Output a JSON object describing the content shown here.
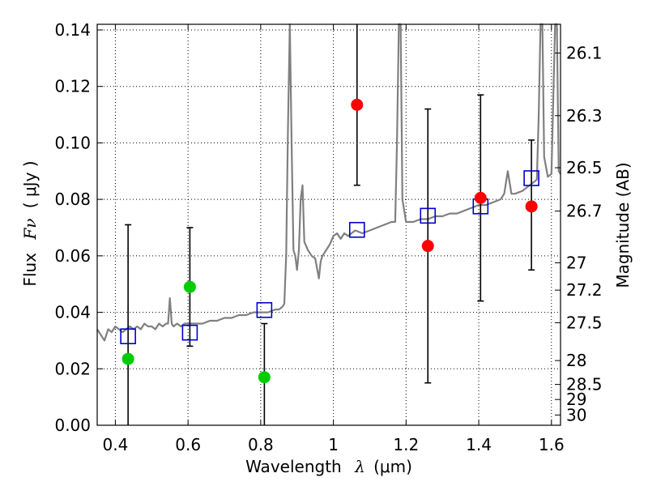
{
  "chart_data": {
    "type": "scatter",
    "title": "",
    "xlabel": {
      "text": "Wavelength",
      "symbol": "λ",
      "unit": "(μm)"
    },
    "ylabel": {
      "text": "Flux",
      "symbol": "Fν",
      "unit": "( μJy )"
    },
    "y2label": "Magnitude (AB)",
    "xlim": [
      0.35,
      1.625
    ],
    "ylim": [
      0.0,
      0.142
    ],
    "grid": true,
    "x_ticks": [
      0.4,
      0.6,
      0.8,
      1.0,
      1.2,
      1.4,
      1.6
    ],
    "x_tick_labels": [
      "0.4",
      "0.6",
      "0.8",
      "1",
      "1.2",
      "1.4",
      "1.6"
    ],
    "y_ticks": [
      0.0,
      0.02,
      0.04,
      0.06,
      0.08,
      0.1,
      0.12,
      0.14
    ],
    "y_tick_labels": [
      "0.00",
      "0.02",
      "0.04",
      "0.06",
      "0.08",
      "0.10",
      "0.12",
      "0.14"
    ],
    "y2_ticks": [
      {
        "mag": 26.1,
        "label": "26.1"
      },
      {
        "mag": 26.3,
        "label": "26.3"
      },
      {
        "mag": 26.5,
        "label": "26.5"
      },
      {
        "mag": 26.7,
        "label": "26.7"
      },
      {
        "mag": 27.0,
        "label": "27"
      },
      {
        "mag": 27.2,
        "label": "27.2"
      },
      {
        "mag": 27.5,
        "label": "27.5"
      },
      {
        "mag": 28.0,
        "label": "28"
      },
      {
        "mag": 28.5,
        "label": "28.5"
      },
      {
        "mag": 29.0,
        "label": "29"
      },
      {
        "mag": 30.0,
        "label": "30"
      }
    ],
    "series": [
      {
        "kind": "line",
        "color": "#808080",
        "points": [
          [
            0.35,
            0.034
          ],
          [
            0.36,
            0.032
          ],
          [
            0.37,
            0.03
          ],
          [
            0.38,
            0.034
          ],
          [
            0.39,
            0.033
          ],
          [
            0.4,
            0.035
          ],
          [
            0.41,
            0.034
          ],
          [
            0.42,
            0.033
          ],
          [
            0.43,
            0.034
          ],
          [
            0.44,
            0.035
          ],
          [
            0.45,
            0.034
          ],
          [
            0.46,
            0.035
          ],
          [
            0.47,
            0.034
          ],
          [
            0.48,
            0.036
          ],
          [
            0.49,
            0.035
          ],
          [
            0.5,
            0.035
          ],
          [
            0.51,
            0.034
          ],
          [
            0.52,
            0.036
          ],
          [
            0.53,
            0.035
          ],
          [
            0.54,
            0.036
          ],
          [
            0.545,
            0.036
          ],
          [
            0.55,
            0.045
          ],
          [
            0.555,
            0.036
          ],
          [
            0.56,
            0.035
          ],
          [
            0.57,
            0.036
          ],
          [
            0.58,
            0.035
          ],
          [
            0.59,
            0.036
          ],
          [
            0.6,
            0.036
          ],
          [
            0.62,
            0.036
          ],
          [
            0.64,
            0.036
          ],
          [
            0.66,
            0.037
          ],
          [
            0.68,
            0.037
          ],
          [
            0.7,
            0.038
          ],
          [
            0.72,
            0.038
          ],
          [
            0.74,
            0.039
          ],
          [
            0.76,
            0.039
          ],
          [
            0.78,
            0.04
          ],
          [
            0.8,
            0.04
          ],
          [
            0.82,
            0.04
          ],
          [
            0.84,
            0.041
          ],
          [
            0.85,
            0.041
          ],
          [
            0.86,
            0.042
          ],
          [
            0.865,
            0.043
          ],
          [
            0.87,
            0.06
          ],
          [
            0.875,
            0.105
          ],
          [
            0.88,
            0.145
          ],
          [
            0.885,
            0.1
          ],
          [
            0.89,
            0.062
          ],
          [
            0.895,
            0.06
          ],
          [
            0.9,
            0.055
          ],
          [
            0.905,
            0.062
          ],
          [
            0.91,
            0.08
          ],
          [
            0.915,
            0.085
          ],
          [
            0.92,
            0.065
          ],
          [
            0.93,
            0.062
          ],
          [
            0.94,
            0.06
          ],
          [
            0.95,
            0.059
          ],
          [
            0.96,
            0.052
          ],
          [
            0.965,
            0.058
          ],
          [
            0.97,
            0.06
          ],
          [
            0.98,
            0.062
          ],
          [
            0.99,
            0.064
          ],
          [
            1.0,
            0.067
          ],
          [
            1.01,
            0.068
          ],
          [
            1.02,
            0.066
          ],
          [
            1.03,
            0.068
          ],
          [
            1.04,
            0.067
          ],
          [
            1.05,
            0.068
          ],
          [
            1.06,
            0.069
          ],
          [
            1.08,
            0.068
          ],
          [
            1.1,
            0.069
          ],
          [
            1.12,
            0.07
          ],
          [
            1.14,
            0.071
          ],
          [
            1.16,
            0.072
          ],
          [
            1.17,
            0.072
          ],
          [
            1.175,
            0.1
          ],
          [
            1.18,
            0.145
          ],
          [
            1.185,
            0.145
          ],
          [
            1.19,
            0.08
          ],
          [
            1.2,
            0.072
          ],
          [
            1.22,
            0.072
          ],
          [
            1.24,
            0.073
          ],
          [
            1.26,
            0.073
          ],
          [
            1.28,
            0.074
          ],
          [
            1.3,
            0.074
          ],
          [
            1.32,
            0.075
          ],
          [
            1.34,
            0.075
          ],
          [
            1.36,
            0.076
          ],
          [
            1.38,
            0.077
          ],
          [
            1.4,
            0.078
          ],
          [
            1.42,
            0.078
          ],
          [
            1.44,
            0.079
          ],
          [
            1.46,
            0.08
          ],
          [
            1.47,
            0.082
          ],
          [
            1.48,
            0.09
          ],
          [
            1.49,
            0.082
          ],
          [
            1.5,
            0.082
          ],
          [
            1.52,
            0.083
          ],
          [
            1.54,
            0.085
          ],
          [
            1.55,
            0.086
          ],
          [
            1.56,
            0.087
          ],
          [
            1.565,
            0.11
          ],
          [
            1.57,
            0.145
          ],
          [
            1.575,
            0.145
          ],
          [
            1.58,
            0.095
          ],
          [
            1.59,
            0.088
          ],
          [
            1.6,
            0.089
          ],
          [
            1.61,
            0.145
          ],
          [
            1.615,
            0.145
          ],
          [
            1.62,
            0.09
          ],
          [
            1.625,
            0.089
          ]
        ]
      },
      {
        "kind": "errorbar",
        "color": "#000000",
        "points": [
          {
            "x": 0.435,
            "low": 0.0,
            "high": 0.071
          },
          {
            "x": 0.605,
            "low": 0.028,
            "high": 0.07
          },
          {
            "x": 0.81,
            "low": 0.0,
            "high": 0.036
          },
          {
            "x": 1.065,
            "low": 0.085,
            "high": 0.142
          },
          {
            "x": 1.26,
            "low": 0.015,
            "high": 0.112
          },
          {
            "x": 1.405,
            "low": 0.044,
            "high": 0.117
          },
          {
            "x": 1.545,
            "low": 0.055,
            "high": 0.101
          }
        ]
      },
      {
        "kind": "open-square",
        "color": "#0000cc",
        "points": [
          [
            0.435,
            0.0315
          ],
          [
            0.605,
            0.0328
          ],
          [
            0.81,
            0.0408
          ],
          [
            1.065,
            0.0692
          ],
          [
            1.26,
            0.0742
          ],
          [
            1.405,
            0.0775
          ],
          [
            1.545,
            0.0875
          ]
        ]
      },
      {
        "kind": "filled-circle",
        "color": "#00cc00",
        "points": [
          [
            0.435,
            0.0235
          ],
          [
            0.605,
            0.049
          ],
          [
            0.81,
            0.017
          ]
        ]
      },
      {
        "kind": "filled-circle",
        "color": "#ff0000",
        "points": [
          [
            1.065,
            0.1135
          ],
          [
            1.26,
            0.0635
          ],
          [
            1.405,
            0.0805
          ],
          [
            1.545,
            0.0775
          ]
        ]
      }
    ]
  }
}
